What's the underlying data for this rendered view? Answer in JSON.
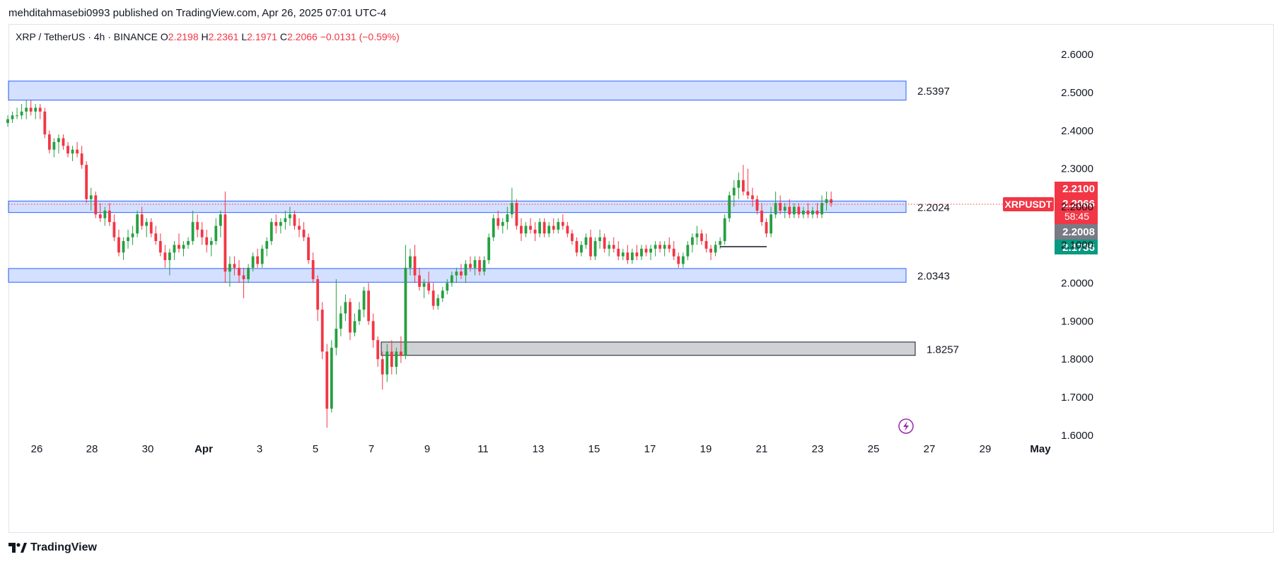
{
  "publisher": "mehditahmasebi0993 published on TradingView.com, Apr 26, 2025 07:01 UTC-4",
  "legend": {
    "symbol": "XRP / TetherUS · 4h · BINANCE",
    "open_label": "O",
    "open": "2.2198",
    "high_label": "H",
    "high": "2.2361",
    "low_label": "L",
    "low": "2.1971",
    "close_label": "C",
    "close": "2.2066",
    "change": "−0.0131 (−0.59%)"
  },
  "brand": "TradingView",
  "colors": {
    "up": "#26a041",
    "down": "#f23645",
    "zone": "#2962ff",
    "grey_zone": "#787b86"
  },
  "chart_data": {
    "type": "candlestick",
    "ylim": [
      1.6,
      2.6
    ],
    "y_ticks": [
      "2.6000",
      "2.5000",
      "2.4000",
      "2.3000",
      "2.2000",
      "2.1000",
      "2.0000",
      "1.9000",
      "1.8000",
      "1.7000",
      "1.6000"
    ],
    "x_ticks": [
      "26",
      "28",
      "30",
      "Apr",
      "3",
      "5",
      "7",
      "9",
      "11",
      "13",
      "15",
      "17",
      "19",
      "21",
      "23",
      "25",
      "27",
      "29",
      "May"
    ],
    "zones": [
      {
        "label": "2.5397",
        "low": 2.48,
        "high": 2.53,
        "color": "blue"
      },
      {
        "label": "2.2024",
        "low": 2.185,
        "high": 2.215,
        "color": "blue"
      },
      {
        "label": "2.0343",
        "low": 2.002,
        "high": 2.038,
        "color": "blue"
      },
      {
        "label": "1.8257",
        "low": 1.81,
        "high": 1.845,
        "color": "grey"
      }
    ],
    "last_price": {
      "symbol": "XRPUSDT",
      "price": "2.2066",
      "countdown": "58:45",
      "value": 2.2066
    },
    "price_labels": [
      {
        "text": "2.2100",
        "value": 2.21,
        "color": "#f23645"
      },
      {
        "text": "2.2008",
        "value": 2.2008,
        "color": "#787b86"
      },
      {
        "text": "2.1736",
        "value": 2.1736,
        "color": "#089981"
      }
    ],
    "candles": [
      [
        2.42,
        2.44,
        2.41,
        2.43
      ],
      [
        2.43,
        2.45,
        2.42,
        2.44
      ],
      [
        2.44,
        2.46,
        2.43,
        2.44
      ],
      [
        2.44,
        2.47,
        2.43,
        2.45
      ],
      [
        2.45,
        2.48,
        2.43,
        2.46
      ],
      [
        2.46,
        2.48,
        2.44,
        2.45
      ],
      [
        2.45,
        2.47,
        2.43,
        2.46
      ],
      [
        2.46,
        2.47,
        2.43,
        2.45
      ],
      [
        2.45,
        2.46,
        2.38,
        2.39
      ],
      [
        2.39,
        2.4,
        2.34,
        2.35
      ],
      [
        2.35,
        2.38,
        2.33,
        2.37
      ],
      [
        2.37,
        2.39,
        2.34,
        2.38
      ],
      [
        2.38,
        2.39,
        2.35,
        2.36
      ],
      [
        2.36,
        2.37,
        2.33,
        2.34
      ],
      [
        2.34,
        2.36,
        2.32,
        2.35
      ],
      [
        2.35,
        2.37,
        2.33,
        2.34
      ],
      [
        2.34,
        2.36,
        2.3,
        2.31
      ],
      [
        2.31,
        2.32,
        2.21,
        2.22
      ],
      [
        2.22,
        2.25,
        2.19,
        2.23
      ],
      [
        2.23,
        2.24,
        2.17,
        2.18
      ],
      [
        2.18,
        2.21,
        2.16,
        2.17
      ],
      [
        2.17,
        2.2,
        2.15,
        2.19
      ],
      [
        2.19,
        2.21,
        2.15,
        2.16
      ],
      [
        2.16,
        2.18,
        2.11,
        2.12
      ],
      [
        2.12,
        2.14,
        2.07,
        2.08
      ],
      [
        2.08,
        2.12,
        2.06,
        2.11
      ],
      [
        2.11,
        2.14,
        2.09,
        2.12
      ],
      [
        2.12,
        2.15,
        2.1,
        2.13
      ],
      [
        2.13,
        2.19,
        2.12,
        2.18
      ],
      [
        2.18,
        2.2,
        2.14,
        2.15
      ],
      [
        2.15,
        2.17,
        2.12,
        2.16
      ],
      [
        2.16,
        2.17,
        2.12,
        2.13
      ],
      [
        2.13,
        2.15,
        2.1,
        2.11
      ],
      [
        2.11,
        2.13,
        2.07,
        2.08
      ],
      [
        2.08,
        2.1,
        2.04,
        2.06
      ],
      [
        2.06,
        2.09,
        2.02,
        2.08
      ],
      [
        2.08,
        2.11,
        2.06,
        2.1
      ],
      [
        2.1,
        2.13,
        2.08,
        2.09
      ],
      [
        2.09,
        2.11,
        2.07,
        2.1
      ],
      [
        2.1,
        2.12,
        2.09,
        2.11
      ],
      [
        2.11,
        2.19,
        2.1,
        2.16
      ],
      [
        2.16,
        2.18,
        2.12,
        2.14
      ],
      [
        2.14,
        2.16,
        2.1,
        2.12
      ],
      [
        2.12,
        2.14,
        2.08,
        2.1
      ],
      [
        2.1,
        2.12,
        2.07,
        2.11
      ],
      [
        2.11,
        2.17,
        2.1,
        2.15
      ],
      [
        2.15,
        2.19,
        2.12,
        2.18
      ],
      [
        2.18,
        2.24,
        2.0,
        2.03
      ],
      [
        2.03,
        2.07,
        1.99,
        2.05
      ],
      [
        2.05,
        2.07,
        2.02,
        2.04
      ],
      [
        2.04,
        2.06,
        2.0,
        2.02
      ],
      [
        2.02,
        2.04,
        1.96,
        2.01
      ],
      [
        2.01,
        2.05,
        2.0,
        2.04
      ],
      [
        2.04,
        2.08,
        2.03,
        2.07
      ],
      [
        2.07,
        2.09,
        2.04,
        2.05
      ],
      [
        2.05,
        2.1,
        2.04,
        2.09
      ],
      [
        2.09,
        2.12,
        2.07,
        2.11
      ],
      [
        2.11,
        2.17,
        2.1,
        2.16
      ],
      [
        2.16,
        2.18,
        2.13,
        2.15
      ],
      [
        2.15,
        2.17,
        2.13,
        2.16
      ],
      [
        2.16,
        2.19,
        2.14,
        2.17
      ],
      [
        2.17,
        2.2,
        2.15,
        2.18
      ],
      [
        2.18,
        2.19,
        2.14,
        2.15
      ],
      [
        2.15,
        2.17,
        2.12,
        2.14
      ],
      [
        2.14,
        2.16,
        2.11,
        2.12
      ],
      [
        2.12,
        2.13,
        2.05,
        2.06
      ],
      [
        2.06,
        2.08,
        2.0,
        2.01
      ],
      [
        2.01,
        2.02,
        1.9,
        1.93
      ],
      [
        1.93,
        1.95,
        1.8,
        1.82
      ],
      [
        1.82,
        1.84,
        1.62,
        1.67
      ],
      [
        1.67,
        1.85,
        1.66,
        1.83
      ],
      [
        1.83,
        2.01,
        1.81,
        1.88
      ],
      [
        1.88,
        1.94,
        1.86,
        1.92
      ],
      [
        1.92,
        1.97,
        1.9,
        1.95
      ],
      [
        1.95,
        1.96,
        1.85,
        1.87
      ],
      [
        1.87,
        1.92,
        1.86,
        1.9
      ],
      [
        1.9,
        1.95,
        1.89,
        1.93
      ],
      [
        1.93,
        1.99,
        1.91,
        1.98
      ],
      [
        1.98,
        2.0,
        1.89,
        1.9
      ],
      [
        1.9,
        1.92,
        1.83,
        1.85
      ],
      [
        1.85,
        1.86,
        1.78,
        1.8
      ],
      [
        1.8,
        1.82,
        1.72,
        1.76
      ],
      [
        1.76,
        1.84,
        1.74,
        1.82
      ],
      [
        1.82,
        1.85,
        1.76,
        1.78
      ],
      [
        1.78,
        1.83,
        1.76,
        1.82
      ],
      [
        1.82,
        1.86,
        1.79,
        1.81
      ],
      [
        1.81,
        2.1,
        1.8,
        2.04
      ],
      [
        2.04,
        2.09,
        2.02,
        2.07
      ],
      [
        2.07,
        2.1,
        2.0,
        2.02
      ],
      [
        2.02,
        2.04,
        1.98,
        1.99
      ],
      [
        1.99,
        2.01,
        1.96,
        2.0
      ],
      [
        2.0,
        2.03,
        1.97,
        1.98
      ],
      [
        1.98,
        2.0,
        1.93,
        1.94
      ],
      [
        1.94,
        1.97,
        1.93,
        1.96
      ],
      [
        1.96,
        1.99,
        1.95,
        1.98
      ],
      [
        1.98,
        2.01,
        1.97,
        2.0
      ],
      [
        2.0,
        2.03,
        1.99,
        2.02
      ],
      [
        2.02,
        2.04,
        2.0,
        2.03
      ],
      [
        2.03,
        2.05,
        2.01,
        2.02
      ],
      [
        2.02,
        2.06,
        2.0,
        2.05
      ],
      [
        2.05,
        2.07,
        2.03,
        2.04
      ],
      [
        2.04,
        2.07,
        2.02,
        2.06
      ],
      [
        2.06,
        2.07,
        2.02,
        2.03
      ],
      [
        2.03,
        2.07,
        2.02,
        2.06
      ],
      [
        2.06,
        2.13,
        2.05,
        2.12
      ],
      [
        2.12,
        2.18,
        2.11,
        2.17
      ],
      [
        2.17,
        2.19,
        2.14,
        2.15
      ],
      [
        2.15,
        2.17,
        2.13,
        2.16
      ],
      [
        2.16,
        2.2,
        2.14,
        2.18
      ],
      [
        2.18,
        2.25,
        2.17,
        2.21
      ],
      [
        2.21,
        2.22,
        2.14,
        2.15
      ],
      [
        2.15,
        2.17,
        2.11,
        2.13
      ],
      [
        2.13,
        2.16,
        2.12,
        2.15
      ],
      [
        2.15,
        2.17,
        2.13,
        2.14
      ],
      [
        2.14,
        2.16,
        2.11,
        2.13
      ],
      [
        2.13,
        2.17,
        2.12,
        2.16
      ],
      [
        2.16,
        2.17,
        2.12,
        2.13
      ],
      [
        2.13,
        2.16,
        2.12,
        2.15
      ],
      [
        2.15,
        2.17,
        2.13,
        2.14
      ],
      [
        2.14,
        2.17,
        2.13,
        2.16
      ],
      [
        2.16,
        2.18,
        2.14,
        2.15
      ],
      [
        2.15,
        2.16,
        2.12,
        2.13
      ],
      [
        2.13,
        2.14,
        2.1,
        2.11
      ],
      [
        2.11,
        2.12,
        2.07,
        2.08
      ],
      [
        2.08,
        2.11,
        2.07,
        2.1
      ],
      [
        2.1,
        2.13,
        2.09,
        2.12
      ],
      [
        2.12,
        2.14,
        2.06,
        2.07
      ],
      [
        2.07,
        2.12,
        2.06,
        2.11
      ],
      [
        2.11,
        2.14,
        2.09,
        2.12
      ],
      [
        2.12,
        2.13,
        2.08,
        2.09
      ],
      [
        2.09,
        2.11,
        2.07,
        2.1
      ],
      [
        2.1,
        2.12,
        2.08,
        2.09
      ],
      [
        2.09,
        2.11,
        2.06,
        2.07
      ],
      [
        2.07,
        2.09,
        2.06,
        2.08
      ],
      [
        2.08,
        2.1,
        2.05,
        2.06
      ],
      [
        2.06,
        2.09,
        2.05,
        2.08
      ],
      [
        2.08,
        2.1,
        2.06,
        2.07
      ],
      [
        2.07,
        2.1,
        2.06,
        2.09
      ],
      [
        2.09,
        2.1,
        2.07,
        2.08
      ],
      [
        2.08,
        2.1,
        2.06,
        2.09
      ],
      [
        2.09,
        2.11,
        2.07,
        2.1
      ],
      [
        2.1,
        2.11,
        2.08,
        2.09
      ],
      [
        2.09,
        2.11,
        2.07,
        2.1
      ],
      [
        2.1,
        2.12,
        2.08,
        2.09
      ],
      [
        2.09,
        2.11,
        2.06,
        2.07
      ],
      [
        2.07,
        2.08,
        2.04,
        2.05
      ],
      [
        2.05,
        2.08,
        2.04,
        2.07
      ],
      [
        2.07,
        2.11,
        2.06,
        2.1
      ],
      [
        2.1,
        2.13,
        2.08,
        2.12
      ],
      [
        2.12,
        2.15,
        2.1,
        2.13
      ],
      [
        2.13,
        2.14,
        2.1,
        2.11
      ],
      [
        2.11,
        2.13,
        2.08,
        2.09
      ],
      [
        2.09,
        2.1,
        2.06,
        2.08
      ],
      [
        2.08,
        2.11,
        2.07,
        2.1
      ],
      [
        2.1,
        2.12,
        2.09,
        2.11
      ],
      [
        2.11,
        2.18,
        2.1,
        2.17
      ],
      [
        2.17,
        2.24,
        2.16,
        2.23
      ],
      [
        2.23,
        2.27,
        2.2,
        2.25
      ],
      [
        2.25,
        2.29,
        2.22,
        2.27
      ],
      [
        2.27,
        2.31,
        2.23,
        2.24
      ],
      [
        2.24,
        2.3,
        2.22,
        2.23
      ],
      [
        2.23,
        2.25,
        2.2,
        2.22
      ],
      [
        2.22,
        2.23,
        2.18,
        2.19
      ],
      [
        2.19,
        2.21,
        2.15,
        2.16
      ],
      [
        2.16,
        2.17,
        2.12,
        2.13
      ],
      [
        2.13,
        2.2,
        2.12,
        2.18
      ],
      [
        2.18,
        2.24,
        2.17,
        2.21
      ],
      [
        2.21,
        2.23,
        2.18,
        2.19
      ],
      [
        2.19,
        2.21,
        2.17,
        2.2
      ],
      [
        2.2,
        2.22,
        2.17,
        2.18
      ],
      [
        2.18,
        2.21,
        2.17,
        2.2
      ],
      [
        2.2,
        2.21,
        2.17,
        2.18
      ],
      [
        2.18,
        2.2,
        2.17,
        2.19
      ],
      [
        2.19,
        2.21,
        2.17,
        2.18
      ],
      [
        2.18,
        2.2,
        2.17,
        2.19
      ],
      [
        2.19,
        2.21,
        2.17,
        2.18
      ],
      [
        2.18,
        2.23,
        2.17,
        2.21
      ],
      [
        2.21,
        2.24,
        2.19,
        2.22
      ],
      [
        2.22,
        2.24,
        2.2,
        2.21
      ]
    ]
  }
}
